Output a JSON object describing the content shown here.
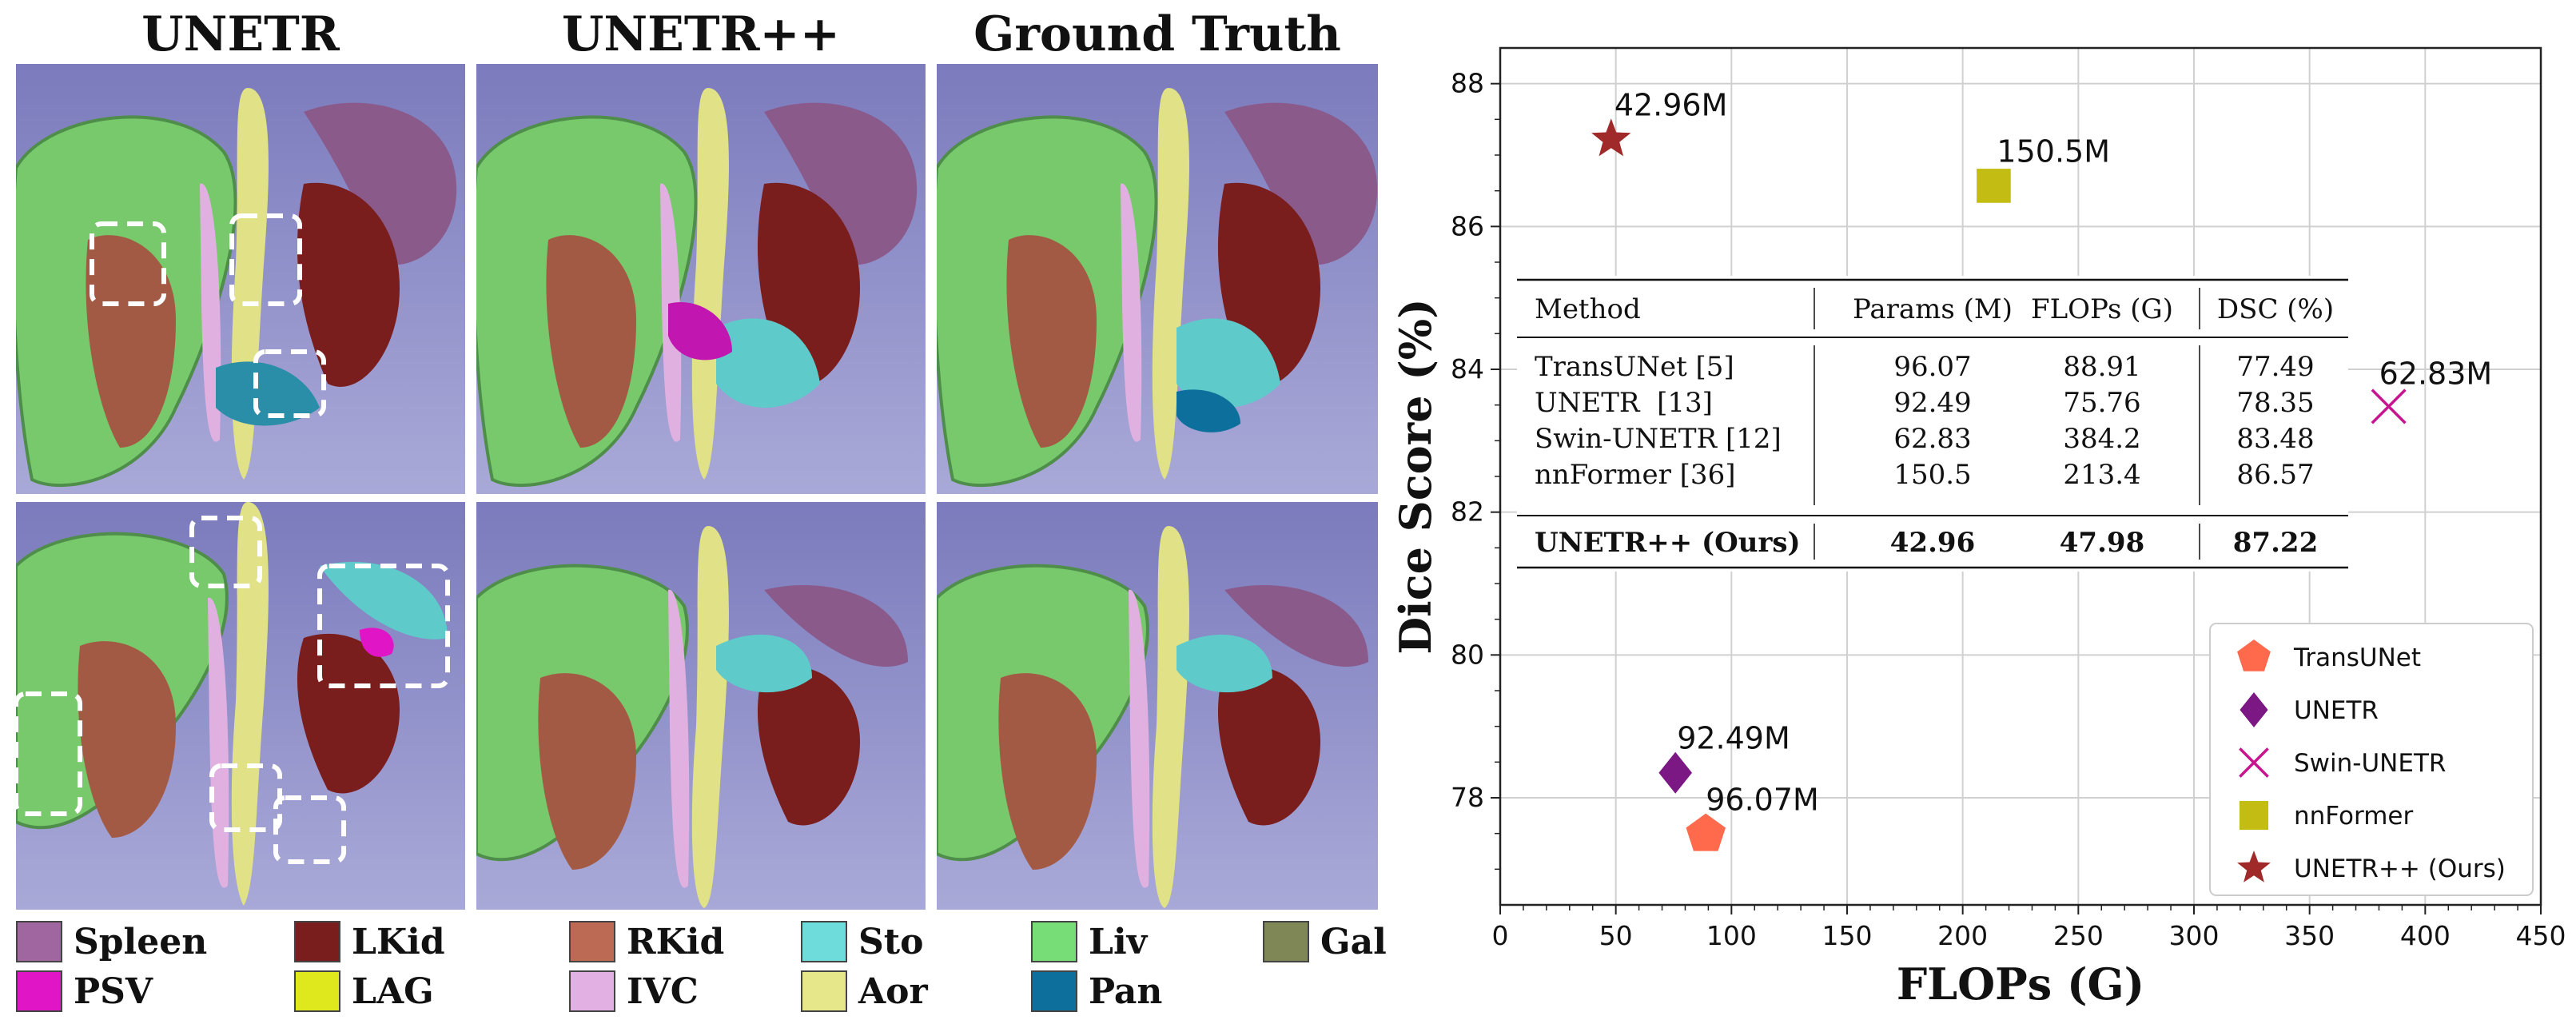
{
  "columns": [
    "UNETR",
    "UNETR++",
    "Ground Truth"
  ],
  "organs": [
    {
      "label": "Spleen",
      "color": "#a066a0"
    },
    {
      "label": "LKid",
      "color": "#7a1d1d"
    },
    {
      "label": "RKid",
      "color": "#bd6a55"
    },
    {
      "label": "Sto",
      "color": "#6fdcdc"
    },
    {
      "label": "Liv",
      "color": "#77dd77"
    },
    {
      "label": "Gal",
      "color": "#7f8757"
    },
    {
      "label": "PSV",
      "color": "#e016c6"
    },
    {
      "label": "LAG",
      "color": "#dfe81c"
    },
    {
      "label": "IVC",
      "color": "#e3b0e3"
    },
    {
      "label": "Aor",
      "color": "#e6e68a"
    },
    {
      "label": "Pan",
      "color": "#0d6f9c"
    }
  ],
  "chart_data": {
    "type": "scatter",
    "xlabel": "FLOPs (G)",
    "ylabel": "Dice Score (%)",
    "xlim": [
      0,
      450
    ],
    "ylim": [
      76.5,
      88.5
    ],
    "xticks": [
      0,
      50,
      100,
      150,
      200,
      250,
      300,
      350,
      400,
      450
    ],
    "yticks": [
      78,
      80,
      82,
      84,
      86,
      88
    ],
    "grid": true,
    "legend_placement": "lower-right",
    "series": [
      {
        "name": "TransUNet",
        "x": 88.91,
        "y": 77.49,
        "params_label": "96.07M",
        "marker": "pentagon",
        "color": "#ff6a4d"
      },
      {
        "name": "UNETR",
        "x": 75.76,
        "y": 78.35,
        "params_label": "92.49M",
        "marker": "diamond",
        "color": "#7b1883"
      },
      {
        "name": "Swin-UNETR",
        "x": 384.2,
        "y": 83.48,
        "params_label": "62.83M",
        "marker": "x",
        "color": "#c8148f"
      },
      {
        "name": "nnFormer",
        "x": 213.4,
        "y": 86.57,
        "params_label": "150.5M",
        "marker": "square",
        "color": "#c3bc12"
      },
      {
        "name": "UNETR++ (Ours)",
        "x": 47.98,
        "y": 87.22,
        "params_label": "42.96M",
        "marker": "star",
        "color": "#a02a2a"
      }
    ],
    "table": {
      "headers": [
        "Method",
        "Params (M)",
        "FLOPs (G)",
        "DSC (%)"
      ],
      "rows": [
        [
          "TransUNet [5]",
          "96.07",
          "88.91",
          "77.49"
        ],
        [
          "UNETR  [13]",
          "92.49",
          "75.76",
          "78.35"
        ],
        [
          "Swin-UNETR [12]",
          "62.83",
          "384.2",
          "83.48"
        ],
        [
          "nnFormer [36]",
          "150.5",
          "213.4",
          "86.57"
        ]
      ],
      "final_row": [
        "UNETR++ (Ours)",
        "42.96",
        "47.98",
        "87.22"
      ]
    }
  }
}
